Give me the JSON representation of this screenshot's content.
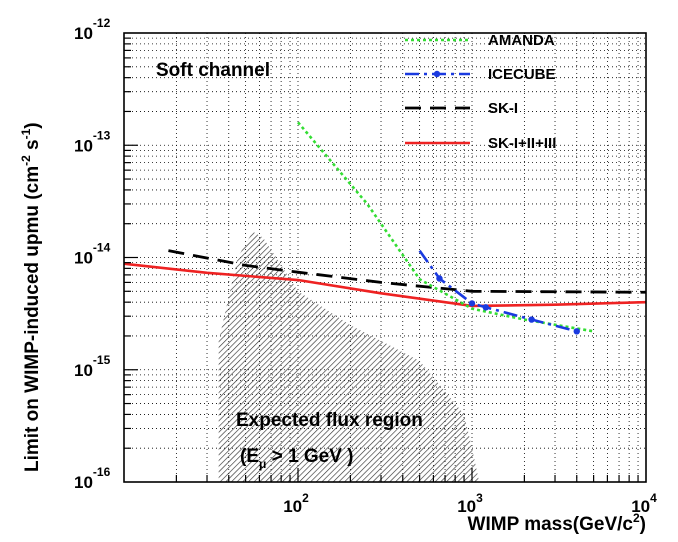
{
  "chart_data": {
    "type": "line",
    "xscale": "log",
    "yscale": "log",
    "xlim": [
      10,
      10000
    ],
    "ylim": [
      1e-16,
      1e-12
    ],
    "grid": true,
    "legend_position": "top-right",
    "xlabel": "WIMP mass(GeV/c",
    "xlabel_sup": "2",
    "xlabel_close": ")",
    "ylabel": "Limit on WIMP-induced upmu (cm",
    "ylabel_sup1": "-2",
    "ylabel_mid": " s",
    "ylabel_sup2": "-1",
    "ylabel_close": ")",
    "x_ticks": [
      {
        "value": 100,
        "base": "10",
        "exp": "2"
      },
      {
        "value": 1000,
        "base": "10",
        "exp": "3"
      },
      {
        "value": 10000,
        "base": "10",
        "exp": "4"
      }
    ],
    "y_ticks": [
      {
        "value": 1e-12,
        "base": "10",
        "exp": "-12"
      },
      {
        "value": 1e-13,
        "base": "10",
        "exp": "-13"
      },
      {
        "value": 1e-14,
        "base": "10",
        "exp": "-14"
      },
      {
        "value": 1e-15,
        "base": "10",
        "exp": "-15"
      },
      {
        "value": 1e-16,
        "base": "10",
        "exp": "-16"
      }
    ],
    "annotations": {
      "soft_channel": "Soft channel",
      "expected_flux_line1": "Expected flux region",
      "expected_flux_line2_open": "(E",
      "expected_flux_line2_sub": "μ",
      "expected_flux_line2_rest": " > 1 GeV  )"
    },
    "series": [
      {
        "name": "AMANDA",
        "color": "#33dd33",
        "style": "dotted",
        "x": [
          100,
          250,
          500,
          1000,
          2000,
          5000
        ],
        "y": [
          1.6e-13,
          3e-14,
          6.4e-15,
          3.5e-15,
          2.8e-15,
          2.2e-15
        ]
      },
      {
        "name": "ICECUBE",
        "color": "#1a3adf",
        "style": "dashdot",
        "markers": true,
        "x": [
          500,
          650,
          1000,
          1200,
          2200,
          4000
        ],
        "y": [
          1.15e-14,
          6.5e-15,
          3.9e-15,
          3.6e-15,
          2.8e-15,
          2.2e-15
        ]
      },
      {
        "name": "SK-I",
        "color": "#000000",
        "style": "dashed",
        "x": [
          18,
          50,
          100,
          300,
          1000,
          10000
        ],
        "y": [
          1.15e-14,
          8.5e-15,
          7.4e-15,
          6e-15,
          5e-15,
          4.9e-15
        ]
      },
      {
        "name": "SK-I+II+III",
        "color": "#ee2222",
        "style": "solid",
        "x": [
          10,
          30,
          100,
          300,
          1000,
          3000,
          10000
        ],
        "y": [
          8.8e-15,
          7.3e-15,
          6.3e-15,
          4.8e-15,
          3.7e-15,
          3.8e-15,
          4e-15
        ]
      }
    ],
    "expected_flux_region": {
      "x": [
        35,
        45,
        55,
        63,
        75,
        100,
        200,
        500,
        900,
        1000,
        1100
      ],
      "y_upper": [
        1.8e-15,
        1e-14,
        1.7e-14,
        1.5e-14,
        1e-14,
        5e-15,
        2.5e-15,
        1.2e-15,
        4e-16,
        2e-16,
        1e-16
      ],
      "y_lower": 1e-16
    }
  }
}
